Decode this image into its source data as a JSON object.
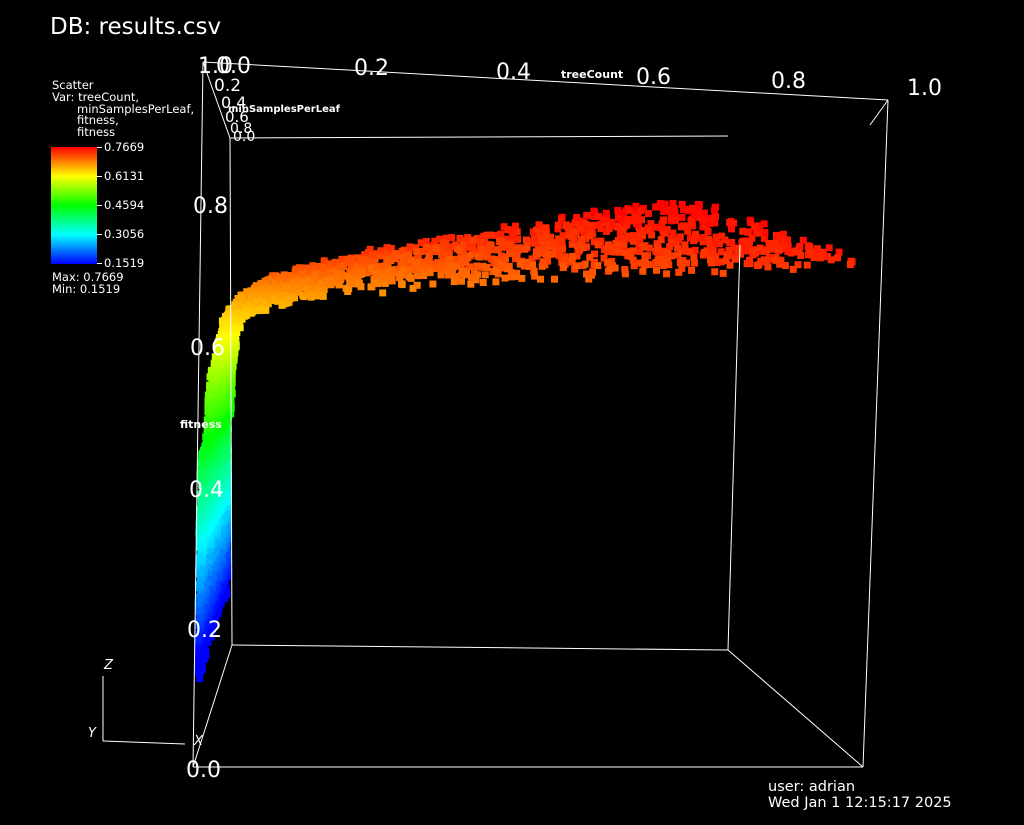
{
  "window": {
    "title": "DB: results.csv"
  },
  "legend": {
    "plot_type": "Scatter",
    "var_lines": [
      "Var: treeCount,",
      "minSamplesPerLeaf,",
      "fitness,",
      "fitness"
    ],
    "colorbar_labels": [
      "0.7669",
      "0.6131",
      "0.4594",
      "0.3056",
      "0.1519"
    ],
    "max_text": "Max: 0.7669",
    "min_text": "Min: 0.1519",
    "colormap": [
      "#0000ff",
      "#00ffff",
      "#00ff00",
      "#ffff00",
      "#ff0000"
    ]
  },
  "footer": {
    "user": "user: adrian",
    "date": "Wed Jan  1 12:15:17 2025"
  },
  "triad": {
    "z_label": "Z",
    "y_label": "Y",
    "x_label": "X"
  },
  "chart_data": {
    "type": "scatter",
    "title": "DB: results.csv",
    "x_axis": {
      "label": "treeCount",
      "range": [
        0,
        1
      ],
      "ticks": [
        "0.0",
        "0.2",
        "0.4",
        "0.6",
        "0.8",
        "1.0"
      ]
    },
    "y_axis": {
      "label": "minSamplesPerLeaf",
      "range": [
        0,
        1
      ],
      "ticks": [
        "0.0",
        "0.2",
        "0.4",
        "0.6",
        "0.8",
        "1.0"
      ]
    },
    "z_axis": {
      "label": "fitness",
      "range": [
        0,
        1
      ],
      "ticks": [
        "0.0",
        "0.2",
        "0.4",
        "0.6",
        "0.8",
        "1.0"
      ]
    },
    "color_variable": "fitness",
    "color_range": [
      0.1519,
      0.7669
    ],
    "bounding_box": true,
    "series": [
      {
        "x": [
          0.0,
          0.0,
          0.0,
          0.0,
          0.0,
          0.0,
          0.0,
          0.01,
          0.01,
          0.02,
          0.03,
          0.05,
          0.1,
          0.2,
          0.35,
          0.5,
          0.7,
          0.85,
          1.0
        ],
        "fitness": [
          0.15,
          0.2,
          0.25,
          0.3,
          0.35,
          0.4,
          0.45,
          0.5,
          0.55,
          0.6,
          0.65,
          0.68,
          0.7,
          0.72,
          0.73,
          0.74,
          0.75,
          0.76,
          0.7669
        ]
      }
    ]
  }
}
